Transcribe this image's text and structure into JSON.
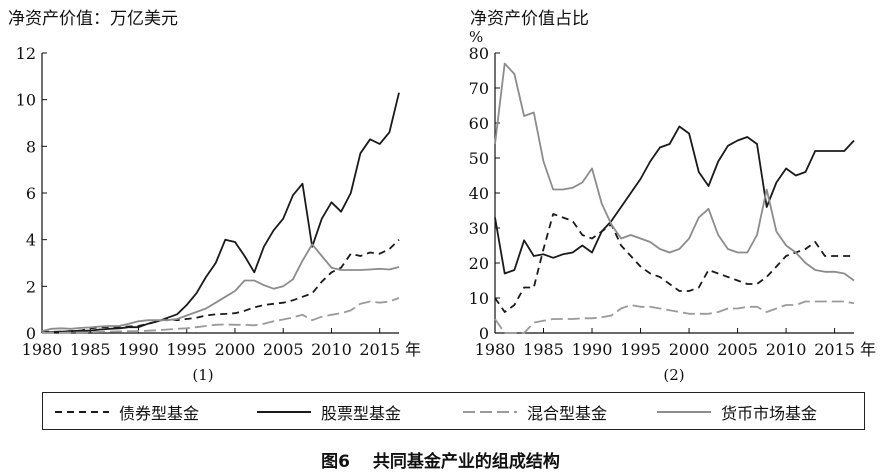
{
  "chart_data": [
    {
      "type": "line",
      "title": "",
      "ylabel": "净资产价值：万亿美元",
      "xlabel": "年",
      "subtitle": "(1)",
      "xlim": [
        1980,
        2017
      ],
      "ylim": [
        0,
        12
      ],
      "xticks": [
        "1980",
        "1985",
        "1990",
        "1995",
        "2000",
        "2005",
        "2010",
        "2015"
      ],
      "yticks": [
        "0",
        "2",
        "4",
        "6",
        "8",
        "10",
        "12"
      ],
      "x": [
        1980,
        1981,
        1982,
        1983,
        1984,
        1985,
        1986,
        1987,
        1988,
        1989,
        1990,
        1991,
        1992,
        1993,
        1994,
        1995,
        1996,
        1997,
        1998,
        1999,
        2000,
        2001,
        2002,
        2003,
        2004,
        2005,
        2006,
        2007,
        2008,
        2009,
        2010,
        2011,
        2012,
        2013,
        2014,
        2015,
        2016,
        2017
      ],
      "series": [
        {
          "name": "债券型基金",
          "values": [
            0.05,
            0.05,
            0.06,
            0.08,
            0.1,
            0.2,
            0.25,
            0.26,
            0.26,
            0.28,
            0.3,
            0.4,
            0.5,
            0.6,
            0.55,
            0.6,
            0.65,
            0.75,
            0.8,
            0.82,
            0.85,
            0.95,
            1.1,
            1.2,
            1.25,
            1.3,
            1.4,
            1.55,
            1.7,
            2.2,
            2.6,
            2.8,
            3.4,
            3.3,
            3.45,
            3.4,
            3.6,
            4.0
          ]
        },
        {
          "name": "股票型基金",
          "values": [
            0.04,
            0.04,
            0.06,
            0.08,
            0.1,
            0.1,
            0.15,
            0.18,
            0.2,
            0.25,
            0.25,
            0.4,
            0.5,
            0.65,
            0.8,
            1.2,
            1.7,
            2.4,
            3.0,
            4.0,
            3.9,
            3.3,
            2.6,
            3.7,
            4.4,
            4.9,
            5.9,
            6.4,
            3.7,
            4.9,
            5.6,
            5.2,
            6.0,
            7.7,
            8.3,
            8.1,
            8.6,
            10.3
          ]
        },
        {
          "name": "混合型基金",
          "values": [
            0.01,
            0.01,
            0.01,
            0.02,
            0.02,
            0.03,
            0.05,
            0.06,
            0.07,
            0.08,
            0.08,
            0.1,
            0.12,
            0.15,
            0.18,
            0.2,
            0.25,
            0.3,
            0.35,
            0.37,
            0.35,
            0.35,
            0.33,
            0.4,
            0.5,
            0.58,
            0.67,
            0.78,
            0.55,
            0.7,
            0.78,
            0.85,
            0.97,
            1.25,
            1.35,
            1.3,
            1.35,
            1.5
          ]
        },
        {
          "name": "货币市场基金",
          "values": [
            0.08,
            0.18,
            0.2,
            0.18,
            0.22,
            0.24,
            0.28,
            0.3,
            0.3,
            0.4,
            0.5,
            0.55,
            0.55,
            0.55,
            0.6,
            0.75,
            0.9,
            1.05,
            1.3,
            1.55,
            1.8,
            2.25,
            2.25,
            2.05,
            1.9,
            2.0,
            2.3,
            3.1,
            3.8,
            3.3,
            2.8,
            2.7,
            2.7,
            2.7,
            2.72,
            2.75,
            2.72,
            2.83
          ]
        }
      ]
    },
    {
      "type": "line",
      "title": "",
      "ylabel": "净资产价值占比",
      "yunit": "%",
      "xlabel": "年",
      "subtitle": "(2)",
      "xlim": [
        1980,
        2017
      ],
      "ylim": [
        0,
        80
      ],
      "xticks": [
        "1980",
        "1985",
        "1990",
        "1995",
        "2000",
        "2005",
        "2010",
        "2015"
      ],
      "yticks": [
        "0",
        "10",
        "20",
        "30",
        "40",
        "50",
        "60",
        "70",
        "80"
      ],
      "x": [
        1980,
        1981,
        1982,
        1983,
        1984,
        1985,
        1986,
        1987,
        1988,
        1989,
        1990,
        1991,
        1992,
        1993,
        1994,
        1995,
        1996,
        1997,
        1998,
        1999,
        2000,
        2001,
        2002,
        2003,
        2004,
        2005,
        2006,
        2007,
        2008,
        2009,
        2010,
        2011,
        2012,
        2013,
        2014,
        2015,
        2016,
        2017
      ],
      "series": [
        {
          "name": "债券型基金",
          "values": [
            10,
            6,
            8,
            13,
            13,
            24,
            34,
            33,
            32,
            28,
            27,
            29,
            31,
            25,
            22,
            19,
            17,
            16,
            14,
            12,
            12,
            13,
            18,
            17,
            16,
            15,
            14,
            14,
            16,
            19,
            22,
            23,
            24,
            26,
            22,
            22,
            22,
            22
          ]
        },
        {
          "name": "股票型基金",
          "values": [
            33,
            17,
            18,
            26.5,
            22,
            22.5,
            21.5,
            22.5,
            23,
            25,
            23,
            29,
            32,
            36,
            40,
            44,
            49,
            53,
            54,
            59,
            57,
            46,
            42,
            49,
            53.5,
            55,
            56,
            54,
            36,
            43,
            47,
            45,
            46,
            52,
            52,
            52,
            52,
            55
          ]
        },
        {
          "name": "混合型基金",
          "values": [
            4,
            0,
            0,
            0,
            3,
            3.5,
            4,
            4,
            4,
            4.2,
            4.2,
            4.5,
            5,
            7,
            8,
            7.5,
            7.5,
            7,
            6.5,
            6,
            5.5,
            5.5,
            5.5,
            6,
            7,
            7,
            7.5,
            7.5,
            6,
            7,
            8,
            8,
            9,
            9,
            9,
            9,
            9,
            8.5
          ]
        },
        {
          "name": "货币市场基金",
          "values": [
            54,
            77,
            74,
            62,
            63,
            49,
            41,
            41,
            41.5,
            43,
            47,
            37,
            31,
            27,
            28,
            27,
            26,
            24,
            23,
            24,
            27,
            33,
            35.5,
            28,
            24,
            23,
            23,
            28,
            41,
            29,
            25,
            23,
            20,
            18,
            17.5,
            17.5,
            17,
            15
          ]
        }
      ]
    }
  ],
  "series_styles": [
    {
      "name": "债券型基金",
      "color": "#1a1a1a",
      "dash": "dashed"
    },
    {
      "name": "股票型基金",
      "color": "#1a1a1a",
      "dash": "solid"
    },
    {
      "name": "混合型基金",
      "color": "#9a9a9a",
      "dash": "longdash"
    },
    {
      "name": "货币市场基金",
      "color": "#8c8c8c",
      "dash": "solid"
    }
  ],
  "caption": "图6　 共同基金产业的组成结构"
}
